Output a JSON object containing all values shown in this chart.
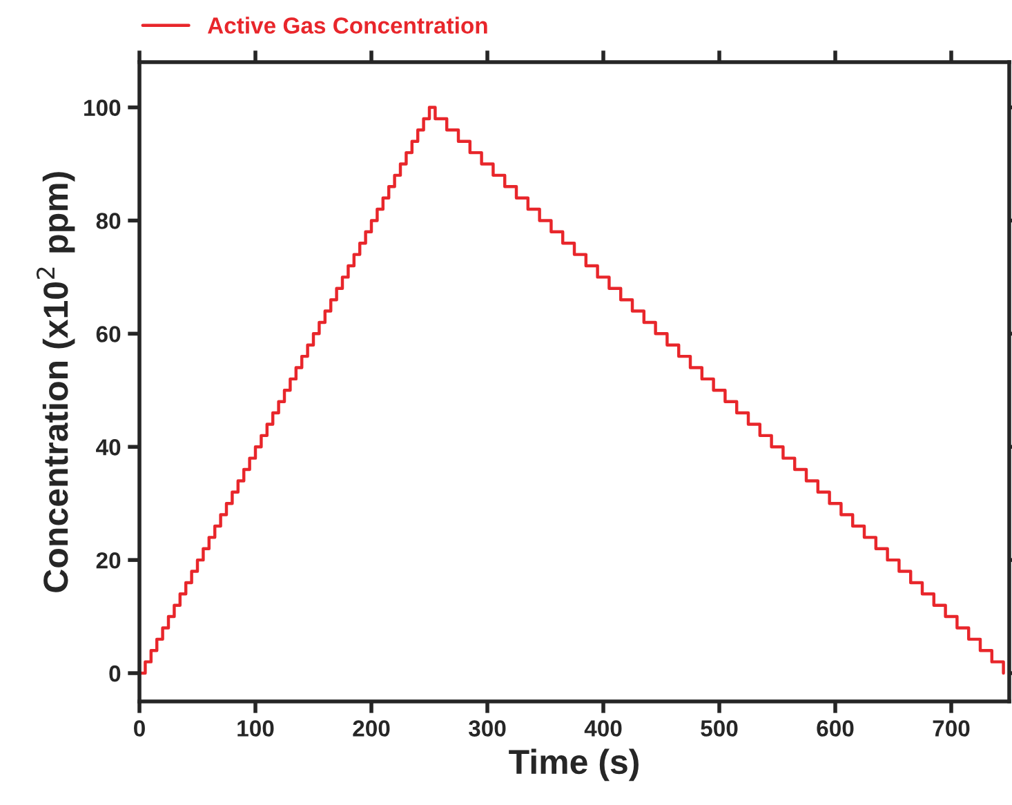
{
  "chart_data": {
    "type": "step",
    "xlabel": "Time (s)",
    "ylabel": "Concentration (x10$^{2}$ ppm)",
    "xlim": [
      0,
      750
    ],
    "ylim": [
      -5,
      108
    ],
    "xticks": [
      0,
      100,
      200,
      300,
      400,
      500,
      600,
      700
    ],
    "yticks": [
      0,
      20,
      40,
      60,
      80,
      100
    ],
    "grid": false,
    "legend": "top left",
    "series": [
      {
        "name": "Active Gas Concentration",
        "color": "#e8262b",
        "x": [
          0,
          5,
          10,
          15,
          20,
          25,
          30,
          35,
          40,
          45,
          50,
          55,
          60,
          65,
          70,
          75,
          80,
          85,
          90,
          95,
          100,
          105,
          110,
          115,
          120,
          125,
          130,
          135,
          140,
          145,
          150,
          155,
          160,
          165,
          170,
          175,
          180,
          185,
          190,
          195,
          200,
          205,
          210,
          215,
          220,
          225,
          230,
          235,
          240,
          245,
          250,
          255,
          265,
          275,
          285,
          295,
          305,
          315,
          325,
          335,
          345,
          355,
          365,
          375,
          385,
          395,
          405,
          415,
          425,
          435,
          445,
          455,
          465,
          475,
          485,
          495,
          505,
          515,
          525,
          535,
          545,
          555,
          565,
          575,
          585,
          595,
          605,
          615,
          625,
          635,
          645,
          655,
          665,
          675,
          685,
          695,
          705,
          715,
          725,
          735,
          745
        ],
        "values": [
          0,
          2,
          4,
          6,
          8,
          10,
          12,
          14,
          16,
          18,
          20,
          22,
          24,
          26,
          28,
          30,
          32,
          34,
          36,
          38,
          40,
          42,
          44,
          46,
          48,
          50,
          52,
          54,
          56,
          58,
          60,
          62,
          64,
          66,
          68,
          70,
          72,
          74,
          76,
          78,
          80,
          82,
          84,
          86,
          88,
          90,
          92,
          94,
          96,
          98,
          100,
          98,
          96,
          94,
          92,
          90,
          88,
          86,
          84,
          82,
          80,
          78,
          76,
          74,
          72,
          70,
          68,
          66,
          64,
          62,
          60,
          58,
          56,
          54,
          52,
          50,
          48,
          46,
          44,
          42,
          40,
          38,
          36,
          34,
          32,
          30,
          28,
          26,
          24,
          22,
          20,
          18,
          16,
          14,
          12,
          10,
          8,
          6,
          4,
          2,
          0
        ]
      }
    ]
  }
}
